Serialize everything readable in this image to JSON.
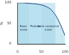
{
  "chart_data": {
    "type": "line",
    "y_label": "%",
    "x": [
      0,
      10,
      20,
      30,
      40,
      50,
      60,
      70,
      80,
      90,
      100
    ],
    "values": [
      100,
      100,
      99,
      98,
      97,
      95,
      91,
      84,
      70,
      48,
      20
    ],
    "color": "#1f3f7a",
    "xlim": [
      0,
      100
    ],
    "xticks": [
      0,
      50,
      100
    ],
    "ylim": [
      0,
      100
    ],
    "yticks": [
      0,
      50,
      100
    ],
    "grid": false,
    "annotations": [
      {
        "text": "Basic noise",
        "x0": 0,
        "x1": 25
      },
      {
        "text": "Plateau",
        "x0": 25,
        "x1": 50
      },
      {
        "text": "Semi-conductor noise",
        "x0": 50,
        "x1": 80
      }
    ]
  }
}
